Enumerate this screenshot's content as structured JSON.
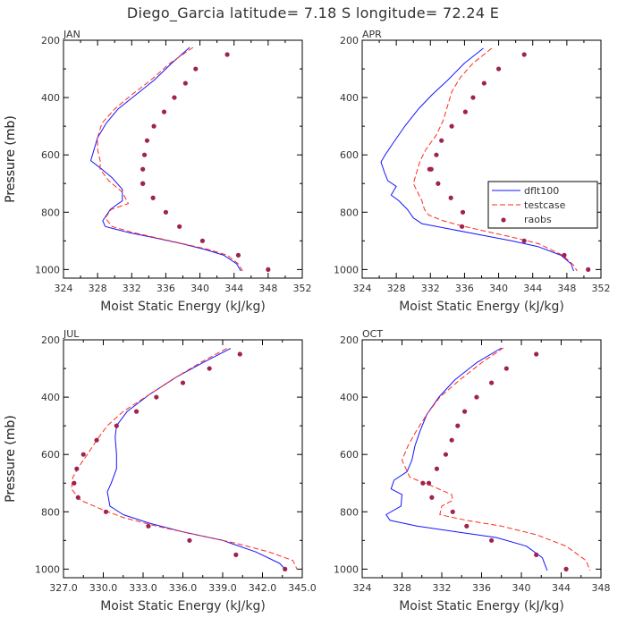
{
  "title": "Diego_Garcia  latitude= 7.18 S longitude= 72.24 E",
  "colors": {
    "dflt100": "#1414ff",
    "testcase": "#ff2a1a",
    "raobs": "#a0224f",
    "text": "#333333"
  },
  "chart_data": [
    {
      "type": "line",
      "label": "JAN",
      "xlabel": "Moist Static Energy (kJ/kg)",
      "ylabel": "Pressure (mb)",
      "xlim": [
        324,
        352
      ],
      "ylim": [
        1030,
        200
      ],
      "xticks": [
        324,
        328,
        332,
        336,
        340,
        344,
        348,
        352
      ],
      "xtick_labels": [
        "324",
        "328",
        "332",
        "336",
        "340",
        "344",
        "348",
        "352"
      ],
      "yticks": [
        200,
        400,
        600,
        800,
        1000
      ],
      "ytick_labels": [
        "200",
        "400",
        "600",
        "800",
        "1000"
      ],
      "show_legend": false,
      "series": [
        {
          "name": "dflt100",
          "style": "solid",
          "x": [
            338.8,
            336.7,
            334.6,
            332.5,
            330.4,
            329.0,
            328.0,
            327.6,
            327.2,
            328.5,
            329.7,
            330.9,
            330.9,
            329.5,
            328.6,
            328.9,
            331.5,
            334.8,
            337.9,
            340.6,
            342.8,
            344.3,
            344.8
          ],
          "y": [
            225,
            280,
            340,
            390,
            440,
            490,
            540,
            580,
            620,
            650,
            680,
            720,
            760,
            790,
            830,
            850,
            870,
            890,
            910,
            930,
            950,
            980,
            1005
          ]
        },
        {
          "name": "testcase",
          "style": "dashed",
          "x": [
            339.2,
            336.5,
            334.2,
            332.0,
            330.0,
            328.5,
            328.0,
            328.0,
            328.3,
            328.3,
            329.3,
            330.9,
            331.6,
            329.6,
            328.9,
            329.7,
            332.0,
            335.0,
            338.0,
            341.0,
            343.2,
            344.5,
            345.0
          ],
          "y": [
            225,
            280,
            340,
            390,
            440,
            490,
            540,
            580,
            620,
            650,
            690,
            730,
            770,
            790,
            820,
            850,
            870,
            890,
            910,
            930,
            950,
            980,
            1005
          ]
        },
        {
          "name": "raobs",
          "style": "dots",
          "x": [
            343.2,
            339.5,
            338.3,
            337.0,
            335.8,
            334.6,
            333.8,
            333.5,
            333.3,
            333.3,
            333.3,
            334.5,
            336.0,
            337.6,
            340.3,
            344.5,
            348.0
          ],
          "y": [
            250,
            300,
            350,
            400,
            450,
            500,
            550,
            600,
            650,
            700,
            700,
            750,
            800,
            850,
            900,
            950,
            1000
          ]
        }
      ]
    },
    {
      "type": "line",
      "label": "APR",
      "xlabel": "Moist Static Energy (kJ/kg)",
      "ylabel": "Pressure (mb)",
      "xlim": [
        324,
        352
      ],
      "ylim": [
        1030,
        200
      ],
      "xticks": [
        324,
        328,
        332,
        336,
        340,
        344,
        348,
        352
      ],
      "xtick_labels": [
        "324",
        "328",
        "332",
        "336",
        "340",
        "344",
        "348",
        "352"
      ],
      "yticks": [
        200,
        400,
        600,
        800,
        1000
      ],
      "ytick_labels": [
        "200",
        "400",
        "600",
        "800",
        "1000"
      ],
      "show_legend": true,
      "series": [
        {
          "name": "dflt100",
          "style": "solid",
          "x": [
            338.2,
            336.0,
            334.0,
            332.2,
            330.6,
            329.0,
            327.6,
            326.7,
            326.2,
            326.6,
            327.0,
            328.0,
            327.4,
            328.3,
            329.3,
            330.0,
            331.0,
            334.5,
            338.0,
            341.5,
            344.6,
            347.3,
            348.5,
            348.8
          ],
          "y": [
            228,
            280,
            340,
            390,
            440,
            500,
            560,
            600,
            625,
            660,
            690,
            710,
            740,
            760,
            790,
            820,
            840,
            860,
            880,
            900,
            920,
            950,
            980,
            1005
          ]
        },
        {
          "name": "testcase",
          "style": "dashed",
          "x": [
            339.2,
            337.0,
            335.5,
            334.5,
            334.0,
            333.5,
            332.7,
            331.5,
            330.8,
            330.4,
            330.0,
            330.5,
            331.0,
            331.3,
            331.8,
            333.5,
            336.0,
            339.0,
            342.0,
            344.7,
            347.5,
            348.8,
            349.2
          ],
          "y": [
            228,
            280,
            330,
            380,
            430,
            480,
            530,
            580,
            620,
            660,
            700,
            730,
            760,
            790,
            810,
            830,
            850,
            870,
            890,
            910,
            950,
            985,
            1005
          ]
        },
        {
          "name": "raobs",
          "style": "dots",
          "x": [
            343.0,
            340.0,
            338.3,
            337.0,
            336.1,
            334.5,
            333.3,
            332.7,
            331.9,
            332.1,
            332.9,
            334.4,
            335.8,
            335.7,
            343.0,
            347.7,
            350.5
          ],
          "y": [
            250,
            300,
            350,
            400,
            450,
            500,
            550,
            600,
            650,
            650,
            700,
            750,
            800,
            850,
            900,
            950,
            1000
          ]
        }
      ]
    },
    {
      "type": "line",
      "label": "JUL",
      "xlabel": "Moist Static Energy (kJ/kg)",
      "ylabel": "Pressure (mb)",
      "xlim": [
        327,
        345
      ],
      "ylim": [
        1030,
        200
      ],
      "xticks": [
        327,
        330,
        333,
        336,
        339,
        342,
        345
      ],
      "xtick_labels": [
        "327.0",
        "330.0",
        "333.0",
        "336.0",
        "339.0",
        "342.0",
        "345.0"
      ],
      "yticks": [
        200,
        400,
        600,
        800,
        1000
      ],
      "ytick_labels": [
        "200",
        "400",
        "600",
        "800",
        "1000"
      ],
      "show_legend": false,
      "series": [
        {
          "name": "dflt100",
          "style": "solid",
          "x": [
            339.6,
            337.5,
            335.5,
            333.5,
            331.8,
            331.0,
            330.9,
            331.0,
            331.0,
            330.6,
            330.3,
            330.5,
            331.5,
            333.5,
            336.0,
            339.0,
            341.5,
            343.3,
            343.8
          ],
          "y": [
            230,
            280,
            330,
            390,
            450,
            500,
            540,
            600,
            650,
            700,
            730,
            780,
            810,
            840,
            870,
            900,
            940,
            980,
            1005
          ]
        },
        {
          "name": "testcase",
          "style": "dashed",
          "x": [
            339.3,
            337.3,
            335.5,
            333.5,
            331.5,
            330.3,
            329.5,
            328.8,
            328.2,
            327.7,
            327.6,
            328.3,
            329.8,
            331.5,
            334.0,
            337.0,
            340.0,
            342.5,
            344.3,
            344.6
          ],
          "y": [
            230,
            280,
            330,
            390,
            450,
            500,
            550,
            600,
            640,
            680,
            720,
            760,
            790,
            820,
            850,
            880,
            910,
            940,
            970,
            1000
          ]
        },
        {
          "name": "raobs",
          "style": "dots",
          "x": [
            340.3,
            338.0,
            336.0,
            334.0,
            332.5,
            331.0,
            329.5,
            328.5,
            328.0,
            327.8,
            328.1,
            330.2,
            333.4,
            336.5,
            340.0,
            343.7
          ],
          "y": [
            250,
            300,
            350,
            400,
            450,
            500,
            550,
            600,
            650,
            700,
            750,
            800,
            850,
            900,
            950,
            1000
          ]
        }
      ]
    },
    {
      "type": "line",
      "label": "OCT",
      "xlabel": "Moist Static Energy (kJ/kg)",
      "ylabel": "Pressure (mb)",
      "xlim": [
        324,
        348
      ],
      "ylim": [
        1030,
        200
      ],
      "xticks": [
        324,
        328,
        332,
        336,
        340,
        344,
        348
      ],
      "xtick_labels": [
        "324",
        "328",
        "332",
        "336",
        "340",
        "344",
        "348"
      ],
      "yticks": [
        200,
        400,
        600,
        800,
        1000
      ],
      "ytick_labels": [
        "200",
        "400",
        "600",
        "800",
        "1000"
      ],
      "show_legend": false,
      "series": [
        {
          "name": "dflt100",
          "style": "solid",
          "x": [
            338.0,
            335.5,
            333.3,
            331.7,
            330.5,
            329.8,
            329.3,
            329.0,
            328.5,
            327.2,
            326.9,
            328.0,
            327.9,
            326.4,
            326.8,
            329.5,
            333.5,
            337.5,
            340.5,
            342.1,
            342.6
          ],
          "y": [
            228,
            280,
            340,
            400,
            460,
            520,
            570,
            620,
            660,
            690,
            720,
            740,
            780,
            810,
            830,
            850,
            870,
            890,
            920,
            960,
            1005
          ]
        },
        {
          "name": "testcase",
          "style": "dashed",
          "x": [
            338.2,
            336.0,
            333.8,
            331.8,
            330.5,
            329.4,
            328.6,
            328.0,
            328.8,
            331.0,
            333.0,
            333.1,
            332.0,
            331.8,
            334.5,
            338.0,
            341.5,
            344.5,
            346.5,
            346.9
          ],
          "y": [
            228,
            280,
            340,
            400,
            460,
            520,
            570,
            620,
            680,
            710,
            740,
            760,
            780,
            810,
            830,
            850,
            880,
            920,
            970,
            1005
          ]
        },
        {
          "name": "raobs",
          "style": "dots",
          "x": [
            341.5,
            338.5,
            337.0,
            335.5,
            334.3,
            333.6,
            333.0,
            332.4,
            331.5,
            330.7,
            330.1,
            331.0,
            333.1,
            334.5,
            337.0,
            341.5,
            344.5
          ],
          "y": [
            250,
            300,
            350,
            400,
            450,
            500,
            550,
            600,
            650,
            700,
            700,
            750,
            800,
            850,
            900,
            950,
            1000
          ]
        }
      ]
    }
  ]
}
